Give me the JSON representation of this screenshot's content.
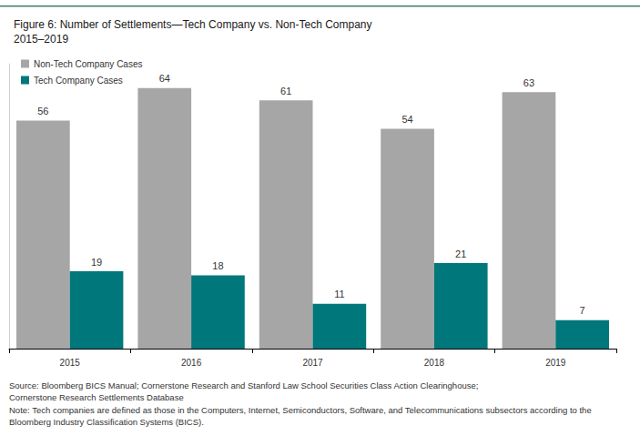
{
  "chart_data": {
    "type": "bar",
    "title": "Figure 6: Number of Settlements—Tech Company vs. Non-Tech Company",
    "subtitle": "2015–2019",
    "categories": [
      "2015",
      "2016",
      "2017",
      "2018",
      "2019"
    ],
    "series": [
      {
        "name": "Non-Tech Company Cases",
        "color": "#a6a6a6",
        "values": [
          56,
          64,
          61,
          54,
          63
        ]
      },
      {
        "name": "Tech Company Cases",
        "color": "#00787b",
        "values": [
          19,
          18,
          11,
          21,
          7
        ]
      }
    ],
    "ylim": [
      0,
      70
    ],
    "grid": false,
    "legend": "top-left",
    "data_labels": true,
    "tick_labels": "x",
    "annotations": [
      "Source: Bloomberg BICS Manual; Cornerstone Research and Stanford Law School Securities Class Action Clearinghouse;",
      "Cornerstone Research Settlements Database",
      "Note: Tech companies are defined as those in the Computers, Internet, Semiconductors, Software, and Telecommunications subsectors according to the",
      "Bloomberg Industry Classification Systems (BICS)."
    ]
  }
}
